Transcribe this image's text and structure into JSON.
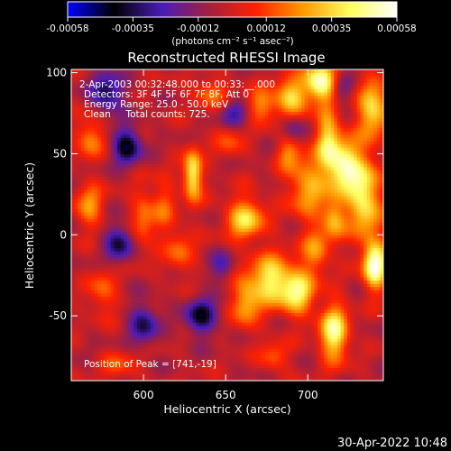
{
  "colorbar": {
    "tick_labels": [
      "-0.00058",
      "-0.00035",
      "-0.00012",
      "0.00012",
      "0.00035",
      "0.00058"
    ],
    "tick_values": [
      -0.00058,
      -0.00035,
      -0.00012,
      0.00012,
      0.00035,
      0.00058
    ],
    "range": [
      -0.00058,
      0.00058
    ],
    "units_label": "(photons cm⁻² s⁻¹ asec⁻²)",
    "colormap_stops": [
      "#0000ff",
      "#000000",
      "#4a1cb8",
      "#a02040",
      "#ff2000",
      "#ff9a00",
      "#ffff60",
      "#ffffff"
    ]
  },
  "image_info": {
    "time_range": "2-Apr-2003 00:32:48.000 to 00:33:__.000",
    "detectors": "Detectors: 3F 4F 5F 6F 7F 8F, Att 0",
    "energy": "Energy Range: 25.0 - 50.0 keV",
    "method": "Clean     Total counts: 725.",
    "peak": "Position of Peak = [741,-19]"
  },
  "footer": {
    "date": "30-Apr-2022 10:48"
  },
  "chart_data": {
    "type": "heatmap",
    "title": "Reconstructed RHESSI Image",
    "xlabel": "Heliocentric X (arcsec)",
    "ylabel": "Heliocentric Y (arcsec)",
    "xlim": [
      556,
      746
    ],
    "ylim": [
      -90,
      102
    ],
    "xticks": [
      600,
      650,
      700
    ],
    "yticks": [
      -50,
      0,
      50,
      100
    ],
    "peak_position": [
      741,
      -19
    ],
    "blobs": [
      {
        "x": 708,
        "y": 95,
        "value": 0.00058,
        "sx": 7,
        "sy": 8
      },
      {
        "x": 690,
        "y": 85,
        "value": 0.0004,
        "sx": 7,
        "sy": 8
      },
      {
        "x": 672,
        "y": 80,
        "value": 0.00028,
        "sx": 6,
        "sy": 7
      },
      {
        "x": 641,
        "y": 88,
        "value": 0.00022,
        "sx": 8,
        "sy": 6
      },
      {
        "x": 567,
        "y": 60,
        "value": 0.00025,
        "sx": 6,
        "sy": 9
      },
      {
        "x": 567,
        "y": 18,
        "value": 0.00028,
        "sx": 6,
        "sy": 9
      },
      {
        "x": 575,
        "y": -35,
        "value": 0.0002,
        "sx": 6,
        "sy": 10
      },
      {
        "x": 600,
        "y": 10,
        "value": 0.00022,
        "sx": 5,
        "sy": 14
      },
      {
        "x": 612,
        "y": 18,
        "value": 0.00018,
        "sx": 5,
        "sy": 12
      },
      {
        "x": 630,
        "y": 37,
        "value": 0.00048,
        "sx": 4,
        "sy": 11
      },
      {
        "x": 622,
        "y": -10,
        "value": 0.0002,
        "sx": 6,
        "sy": 10
      },
      {
        "x": 662,
        "y": 10,
        "value": 0.0004,
        "sx": 8,
        "sy": 9
      },
      {
        "x": 662,
        "y": -40,
        "value": 0.00032,
        "sx": 6,
        "sy": 12
      },
      {
        "x": 678,
        "y": -28,
        "value": 0.00045,
        "sx": 8,
        "sy": 11
      },
      {
        "x": 694,
        "y": -35,
        "value": 0.00044,
        "sx": 7,
        "sy": 10
      },
      {
        "x": 700,
        "y": 30,
        "value": 0.00032,
        "sx": 8,
        "sy": 14
      },
      {
        "x": 705,
        "y": -10,
        "value": 0.00026,
        "sx": 6,
        "sy": 10
      },
      {
        "x": 716,
        "y": -60,
        "value": 0.0005,
        "sx": 6,
        "sy": 12
      },
      {
        "x": 712,
        "y": 60,
        "value": 0.00036,
        "sx": 5,
        "sy": 14
      },
      {
        "x": 722,
        "y": 42,
        "value": 0.00052,
        "sx": 7,
        "sy": 12
      },
      {
        "x": 735,
        "y": 22,
        "value": 0.00044,
        "sx": 7,
        "sy": 18
      },
      {
        "x": 741,
        "y": -19,
        "value": 0.00058,
        "sx": 5,
        "sy": 10
      },
      {
        "x": 740,
        "y": 78,
        "value": 0.0004,
        "sx": 7,
        "sy": 12
      },
      {
        "x": 716,
        "y": 10,
        "value": 0.00032,
        "sx": 5,
        "sy": 9
      },
      {
        "x": 688,
        "y": 52,
        "value": 0.00024,
        "sx": 5,
        "sy": 8
      },
      {
        "x": 652,
        "y": 58,
        "value": 0.00016,
        "sx": 6,
        "sy": 8
      },
      {
        "x": 585,
        "y": -80,
        "value": 0.00015,
        "sx": 8,
        "sy": 6
      },
      {
        "x": 680,
        "y": -75,
        "value": 0.0002,
        "sx": 6,
        "sy": 6
      },
      {
        "x": 590,
        "y": 55,
        "value": -0.0004,
        "sx": 6,
        "sy": 8
      },
      {
        "x": 578,
        "y": 88,
        "value": -0.00035,
        "sx": 7,
        "sy": 8
      },
      {
        "x": 585,
        "y": -5,
        "value": -0.00032,
        "sx": 6,
        "sy": 8
      },
      {
        "x": 600,
        "y": -55,
        "value": -0.0003,
        "sx": 6,
        "sy": 9
      },
      {
        "x": 635,
        "y": -50,
        "value": -0.00035,
        "sx": 7,
        "sy": 8
      },
      {
        "x": 655,
        "y": 75,
        "value": -0.00024,
        "sx": 6,
        "sy": 6
      },
      {
        "x": 720,
        "y": 90,
        "value": -0.00022,
        "sx": 5,
        "sy": 6
      },
      {
        "x": 648,
        "y": -20,
        "value": -0.0002,
        "sx": 5,
        "sy": 7
      },
      {
        "x": 690,
        "y": 65,
        "value": -0.00022,
        "sx": 5,
        "sy": 6
      }
    ]
  }
}
